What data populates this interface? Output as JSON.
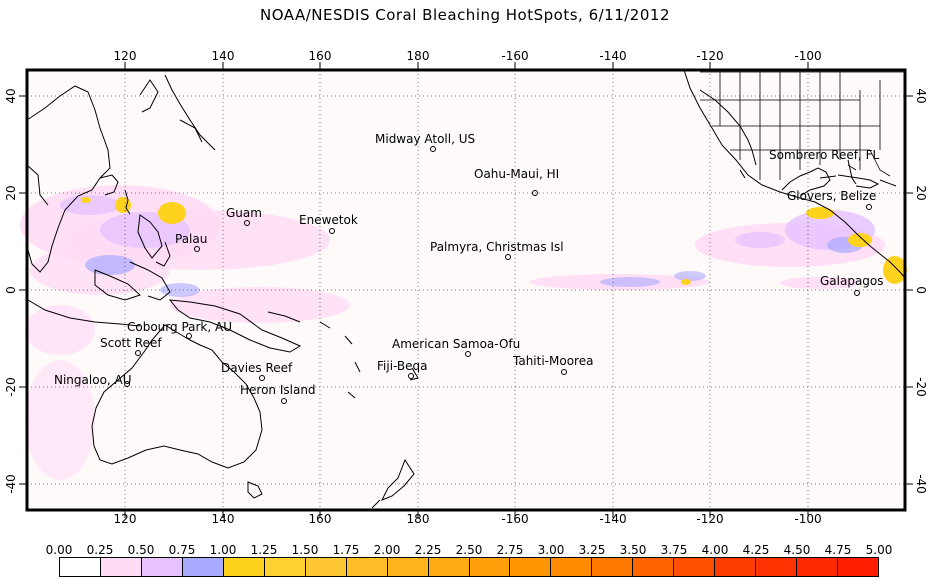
{
  "title": "NOAA/NESDIS Coral Bleaching HotSpots, 6/11/2012",
  "axes": {
    "top_lon_labels": [
      "120",
      "140",
      "160",
      "180",
      "-160",
      "-140",
      "-120",
      "-100"
    ],
    "bottom_lon_labels": [
      "120",
      "140",
      "160",
      "180",
      "-160",
      "-140",
      "-120",
      "-100"
    ],
    "left_lat_labels": [
      "40",
      "20",
      "0",
      "-20",
      "-40"
    ],
    "right_lat_labels": [
      "40",
      "20",
      "0",
      "-20",
      "-40"
    ]
  },
  "sites": [
    "Midway Atoll, US",
    "Oahu-Maui, HI",
    "Sombrero Reef, FL",
    "Guam",
    "Enewetok",
    "Glovers, Belize",
    "Palau",
    "Palmyra, Christmas Isl",
    "Galapagos",
    "Cobourg Park, AU",
    "Scott Reef",
    "American Samoa-Ofu",
    "Tahiti-Moorea",
    "Fiji-Beqa",
    "Davies Reef",
    "Ningaloo, AU",
    "Heron Island"
  ],
  "legend": {
    "values": [
      "0.00",
      "0.25",
      "0.50",
      "0.75",
      "1.00",
      "1.25",
      "1.50",
      "1.75",
      "2.00",
      "2.25",
      "2.50",
      "2.75",
      "3.00",
      "3.25",
      "3.50",
      "3.75",
      "4.00",
      "4.25",
      "4.50",
      "4.75",
      "5.00"
    ],
    "colors": [
      "#ffffff",
      "#ffdcf5",
      "#e6c3ff",
      "#aaaaff",
      "#ffd21e",
      "#ffd232",
      "#ffc832",
      "#ffbe28",
      "#ffb41e",
      "#ffaa14",
      "#ffa00a",
      "#ff9600",
      "#ff8c00",
      "#ff7800",
      "#ff6400",
      "#ff5000",
      "#ff3c00",
      "#ff3200",
      "#ff2800",
      "#ff1e00"
    ]
  }
}
